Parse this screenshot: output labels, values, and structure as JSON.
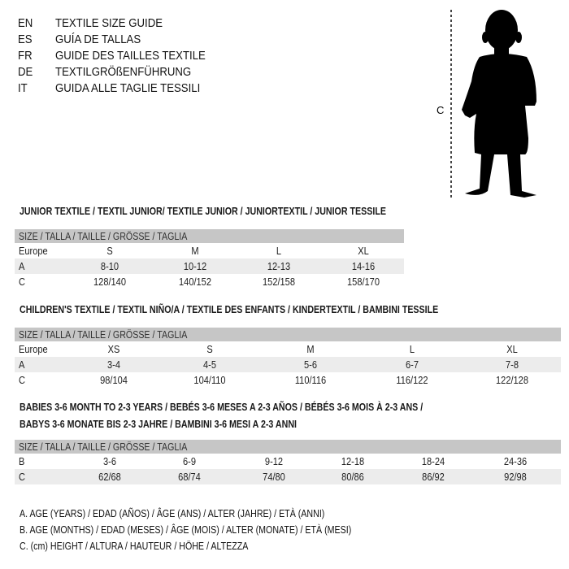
{
  "languages": [
    {
      "code": "EN",
      "text": "TEXTILE SIZE GUIDE"
    },
    {
      "code": "ES",
      "text": "GUÍA DE TALLAS"
    },
    {
      "code": "FR",
      "text": "GUIDE DES TAILLES TEXTILE"
    },
    {
      "code": "DE",
      "text": "TEXTILGRÖßENFÜHRUNG"
    },
    {
      "code": "IT",
      "text": "GUIDA ALLE TAGLIE TESSILI"
    }
  ],
  "figure": {
    "measure_label": "C"
  },
  "tables": [
    {
      "title": "JUNIOR TEXTILE / TEXTIL JUNIOR/ TEXTILE JUNIOR / JUNIORTEXTIL / JUNIOR TESSILE",
      "header": "SIZE / TALLA / TAILLE / GRÖSSE / TAGLIA",
      "rows": [
        {
          "label": "Europe",
          "values": [
            "S",
            "M",
            "L",
            "XL"
          ]
        },
        {
          "label": "A",
          "values": [
            "8-10",
            "10-12",
            "12-13",
            "14-16"
          ]
        },
        {
          "label": "C",
          "values": [
            "128/140",
            "140/152",
            "152/158",
            "158/170"
          ]
        }
      ]
    },
    {
      "title": "CHILDREN'S TEXTILE / TEXTIL NIÑO/A / TEXTILE DES ENFANTS / KINDERTEXTIL / BAMBINI TESSILE",
      "header": "SIZE / TALLA / TAILLE / GRÖSSE / TAGLIA",
      "rows": [
        {
          "label": "Europe",
          "values": [
            "XS",
            "S",
            "M",
            "L",
            "XL"
          ]
        },
        {
          "label": "A",
          "values": [
            "3-4",
            "4-5",
            "5-6",
            "6-7",
            "7-8"
          ]
        },
        {
          "label": "C",
          "values": [
            "98/104",
            "104/110",
            "110/116",
            "116/122",
            "122/128"
          ]
        }
      ]
    },
    {
      "title": "BABIES 3-6 MONTH TO 2-3 YEARS / BEBÉS 3-6 MESES A 2-3 AÑOS / BÉBÉS 3-6 MOIS À 2-3 ANS /",
      "title_line2": "BABYS 3-6 MONATE BIS 2-3 JAHRE / BAMBINI 3-6 MESI A 2-3 ANNI",
      "header": "SIZE / TALLA / TAILLE / GRÖSSE / TAGLIA",
      "rows": [
        {
          "label": "B",
          "values": [
            "3-6",
            "6-9",
            "9-12",
            "12-18",
            "18-24",
            "24-36"
          ]
        },
        {
          "label": "C",
          "values": [
            "62/68",
            "68/74",
            "74/80",
            "80/86",
            "86/92",
            "92/98"
          ]
        }
      ]
    }
  ],
  "legend": [
    "A. AGE (YEARS) / EDAD (AÑOS) / ÂGE (ANS) / ALTER (JAHRE) / ETÀ (ANNI)",
    "B. AGE (MONTHS) / EDAD (MESES) / ÂGE (MOIS) / ALTER (MONATE) / ETÀ (MESI)",
    "C. (cm) HEIGHT / ALTURA / HAUTEUR / HÖHE / ALTEZZA"
  ]
}
